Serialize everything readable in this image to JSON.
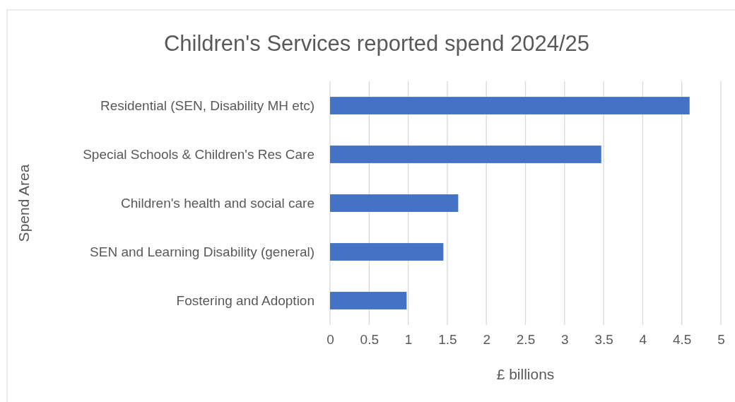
{
  "chart_data": {
    "type": "bar",
    "orientation": "horizontal",
    "title": "Children's Services reported spend 2024/25",
    "xlabel": "£ billions",
    "ylabel": "Spend Area",
    "categories": [
      "Residential (SEN, Disability MH etc)",
      "Special Schools & Children's Res Care",
      "Children's health and social care",
      "SEN and Learning Disability (general)",
      "Fostering and Adoption"
    ],
    "values": [
      4.6,
      3.47,
      1.64,
      1.45,
      0.98
    ],
    "color": "#4472c4",
    "xlim": [
      0,
      5
    ],
    "xticks": [
      0,
      0.5,
      1,
      1.5,
      2,
      2.5,
      3,
      3.5,
      4,
      4.5,
      5
    ],
    "grid": "x"
  }
}
